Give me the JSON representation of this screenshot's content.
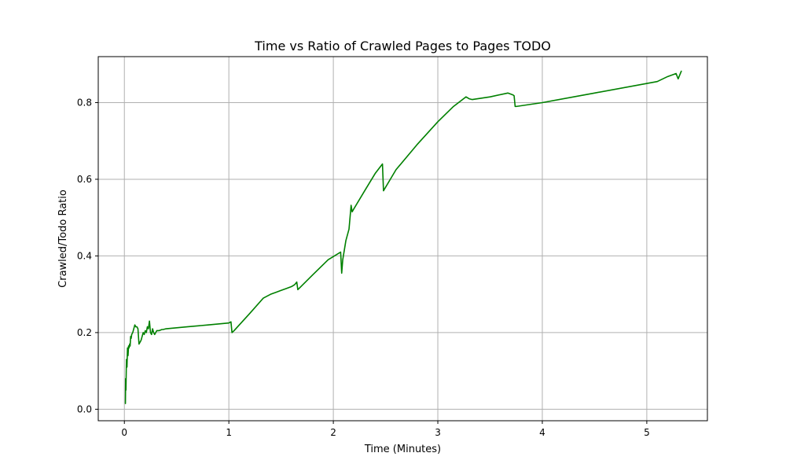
{
  "chart_data": {
    "type": "line",
    "title": "Time vs Ratio of Crawled Pages to Pages TODO",
    "xlabel": "Time (Minutes)",
    "ylabel": "Crawled/Todo Ratio",
    "xlim": [
      -0.25,
      5.58
    ],
    "ylim": [
      -0.03,
      0.92
    ],
    "xticks": [
      0,
      1,
      2,
      3,
      4,
      5
    ],
    "xtick_labels": [
      "0",
      "1",
      "2",
      "3",
      "4",
      "5"
    ],
    "yticks": [
      0.0,
      0.2,
      0.4,
      0.6,
      0.8
    ],
    "ytick_labels": [
      "0.0",
      "0.2",
      "0.4",
      "0.6",
      "0.8"
    ],
    "grid": true,
    "legend": "none",
    "series": [
      {
        "color": "#008000",
        "x": [
          0.01,
          0.012,
          0.015,
          0.018,
          0.02,
          0.025,
          0.03,
          0.035,
          0.04,
          0.045,
          0.05,
          0.055,
          0.06,
          0.065,
          0.07,
          0.08,
          0.09,
          0.1,
          0.11,
          0.12,
          0.13,
          0.14,
          0.15,
          0.16,
          0.165,
          0.17,
          0.18,
          0.19,
          0.2,
          0.21,
          0.22,
          0.23,
          0.24,
          0.25,
          0.26,
          0.27,
          0.28,
          0.29,
          0.3,
          0.31,
          0.32,
          0.33,
          0.34,
          0.35,
          0.36,
          0.37,
          0.4,
          0.6,
          0.8,
          1.0,
          1.02,
          1.03,
          1.05,
          1.2,
          1.33,
          1.4,
          1.45,
          1.5,
          1.55,
          1.6,
          1.63,
          1.65,
          1.66,
          1.8,
          1.95,
          2.07,
          2.08,
          2.09,
          2.12,
          2.15,
          2.17,
          2.18,
          2.19,
          2.3,
          2.4,
          2.47,
          2.48,
          2.6,
          2.8,
          3.0,
          3.15,
          3.27,
          3.3,
          3.33,
          3.5,
          3.67,
          3.72,
          3.73,
          3.74,
          3.75,
          4.0,
          4.5,
          5.1,
          5.2,
          5.28,
          5.3,
          5.33
        ],
        "y": [
          0.015,
          0.08,
          0.05,
          0.1,
          0.13,
          0.11,
          0.16,
          0.14,
          0.165,
          0.16,
          0.17,
          0.165,
          0.19,
          0.185,
          0.195,
          0.2,
          0.21,
          0.22,
          0.215,
          0.215,
          0.21,
          0.17,
          0.175,
          0.18,
          0.185,
          0.19,
          0.2,
          0.195,
          0.205,
          0.2,
          0.215,
          0.21,
          0.23,
          0.2,
          0.195,
          0.21,
          0.2,
          0.195,
          0.2,
          0.205,
          0.205,
          0.205,
          0.206,
          0.207,
          0.208,
          0.208,
          0.21,
          0.215,
          0.22,
          0.225,
          0.228,
          0.2,
          0.205,
          0.25,
          0.29,
          0.3,
          0.305,
          0.31,
          0.315,
          0.32,
          0.325,
          0.332,
          0.312,
          0.35,
          0.39,
          0.41,
          0.355,
          0.39,
          0.44,
          0.47,
          0.532,
          0.515,
          0.52,
          0.57,
          0.615,
          0.64,
          0.57,
          0.625,
          0.69,
          0.75,
          0.79,
          0.815,
          0.81,
          0.808,
          0.815,
          0.825,
          0.82,
          0.818,
          0.79,
          0.79,
          0.8,
          0.825,
          0.855,
          0.868,
          0.876,
          0.862,
          0.882
        ]
      }
    ]
  }
}
